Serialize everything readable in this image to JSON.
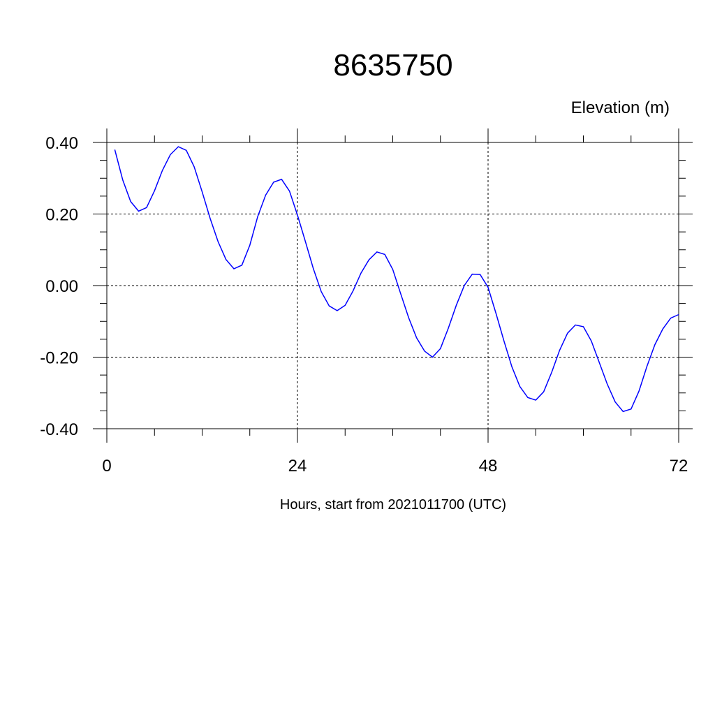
{
  "chart_data": {
    "type": "line",
    "title": "8635750",
    "ylabel": "Elevation (m)",
    "xlabel": "Hours, start from 2021011700 (UTC)",
    "xlim": [
      0,
      72
    ],
    "ylim": [
      -0.4,
      0.4
    ],
    "xticks": [
      "0",
      "24",
      "48",
      "72"
    ],
    "xtick_values": [
      0,
      24,
      48,
      72
    ],
    "yticks": [
      "0.40",
      "0.20",
      "0.00",
      "-0.20",
      "-0.40"
    ],
    "ytick_values": [
      0.4,
      0.2,
      0.0,
      -0.2,
      -0.4
    ],
    "grid": true,
    "line_color": "#0000ff",
    "series": [
      {
        "x": [
          1,
          2,
          3,
          4,
          5,
          6,
          7,
          8,
          9,
          10,
          11,
          12,
          13,
          14,
          15,
          16,
          17,
          18,
          19,
          20,
          21,
          22,
          23,
          24,
          25,
          26,
          27,
          28,
          29,
          30,
          31,
          32,
          33,
          34,
          35,
          36,
          37,
          38,
          39,
          40,
          41,
          42,
          43,
          44,
          45,
          46,
          47,
          48,
          49,
          50,
          51,
          52,
          53,
          54,
          55,
          56,
          57,
          58,
          59,
          60,
          61,
          62,
          63,
          64,
          65,
          66,
          67,
          68,
          69,
          70,
          71,
          72
        ],
        "values": [
          0.38,
          0.295,
          0.235,
          0.208,
          0.218,
          0.265,
          0.322,
          0.366,
          0.388,
          0.378,
          0.332,
          0.262,
          0.188,
          0.123,
          0.073,
          0.047,
          0.057,
          0.113,
          0.193,
          0.253,
          0.289,
          0.297,
          0.264,
          0.197,
          0.123,
          0.047,
          -0.017,
          -0.057,
          -0.07,
          -0.055,
          -0.015,
          0.035,
          0.072,
          0.094,
          0.087,
          0.045,
          -0.023,
          -0.09,
          -0.146,
          -0.183,
          -0.2,
          -0.176,
          -0.119,
          -0.055,
          0.0,
          0.032,
          0.031,
          -0.005,
          -0.078,
          -0.155,
          -0.227,
          -0.282,
          -0.313,
          -0.32,
          -0.297,
          -0.243,
          -0.181,
          -0.133,
          -0.11,
          -0.115,
          -0.155,
          -0.215,
          -0.275,
          -0.325,
          -0.352,
          -0.345,
          -0.295,
          -0.226,
          -0.165,
          -0.121,
          -0.091,
          -0.081
        ]
      }
    ]
  }
}
